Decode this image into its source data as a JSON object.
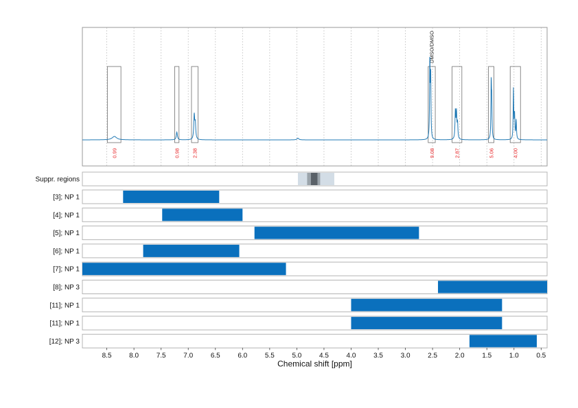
{
  "chart_data": {
    "type": "spectrum-with-range-bars",
    "xlabel": "Chemical shift [ppm]",
    "x_reversed": true,
    "xlim": [
      8.95,
      0.39
    ],
    "ticks": [
      "8.5",
      "8.0",
      "7.5",
      "7.0",
      "6.5",
      "6.0",
      "5.5",
      "5.0",
      "4.5",
      "4.0",
      "3.5",
      "3.0",
      "2.5",
      "2.0",
      "1.5",
      "1.0",
      "0.5"
    ],
    "grid": true,
    "integrals": [
      {
        "start": 8.49,
        "end": 8.24,
        "label": "0.99"
      },
      {
        "start": 7.25,
        "end": 7.17,
        "label": "0.98"
      },
      {
        "start": 6.94,
        "end": 6.82,
        "label": "2.38"
      },
      {
        "start": 2.58,
        "end": 2.45,
        "label": "9.08"
      },
      {
        "start": 2.14,
        "end": 1.96,
        "label": "2.87"
      },
      {
        "start": 1.47,
        "end": 1.37,
        "label": "5.06"
      },
      {
        "start": 1.07,
        "end": 0.88,
        "label": "4.00"
      }
    ],
    "solvent_annotation": {
      "position": 2.52,
      "label": "DMSO/DMSO"
    },
    "peaks": [
      {
        "ppm": 8.36,
        "height": 0.04,
        "width": 0.05
      },
      {
        "ppm": 7.21,
        "height": 0.09,
        "width": 0.012
      },
      {
        "ppm": 6.89,
        "height": 0.28,
        "width": 0.01
      },
      {
        "ppm": 6.87,
        "height": 0.18,
        "width": 0.01
      },
      {
        "ppm": 4.98,
        "height": 0.02,
        "width": 0.02
      },
      {
        "ppm": 2.55,
        "height": 0.92,
        "width": 0.006
      },
      {
        "ppm": 2.535,
        "height": 0.74,
        "width": 0.006
      },
      {
        "ppm": 2.08,
        "height": 0.32,
        "width": 0.008
      },
      {
        "ppm": 2.06,
        "height": 0.3,
        "width": 0.008
      },
      {
        "ppm": 2.04,
        "height": 0.18,
        "width": 0.008
      },
      {
        "ppm": 1.42,
        "height": 0.64,
        "width": 0.006
      },
      {
        "ppm": 1.41,
        "height": 0.4,
        "width": 0.006
      },
      {
        "ppm": 1.01,
        "height": 0.58,
        "width": 0.006
      },
      {
        "ppm": 0.99,
        "height": 0.28,
        "width": 0.007
      },
      {
        "ppm": 0.96,
        "height": 0.22,
        "width": 0.007
      }
    ],
    "suppressed_regions": {
      "label": "Suppr. regions",
      "bands": [
        {
          "from": 4.98,
          "to": 4.31,
          "shade": "#d3dde6"
        },
        {
          "from": 4.81,
          "to": 4.57,
          "shade": "#9aa3aa"
        },
        {
          "from": 4.74,
          "to": 4.62,
          "shade": "#5a6168"
        }
      ]
    },
    "series": [
      {
        "name": "[3]; NP 1",
        "from": 8.2,
        "to": 6.43
      },
      {
        "name": "[4]; NP 1",
        "from": 7.48,
        "to": 6.0
      },
      {
        "name": "[5]; NP 1",
        "from": 5.78,
        "to": 2.75
      },
      {
        "name": "[6]; NP 1",
        "from": 7.83,
        "to": 6.06
      },
      {
        "name": "[7]; NP 1",
        "from": 8.95,
        "to": 5.2
      },
      {
        "name": "[8]; NP 3",
        "from": 2.4,
        "to": 0.39
      },
      {
        "name": "[11]; NP 1",
        "from": 4.0,
        "to": 1.22
      },
      {
        "name": "[11]; NP 1",
        "from": 4.0,
        "to": 1.22
      },
      {
        "name": "[12]; NP 3",
        "from": 1.82,
        "to": 0.58
      }
    ]
  },
  "colors": {
    "spectrum": "#1f78b4",
    "bar": "#0a70bd",
    "integral_label": "#e8282a"
  }
}
